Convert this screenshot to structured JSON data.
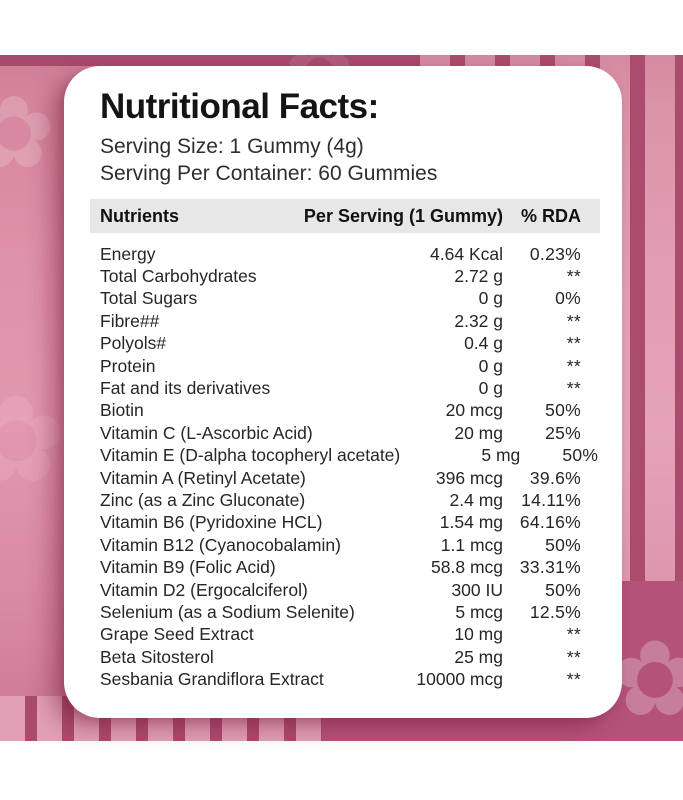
{
  "label": {
    "title": "Nutritional Facts:",
    "serving_size": "Serving Size: 1 Gummy (4g)",
    "serving_per_container": "Serving Per Container: 60 Gummies"
  },
  "table": {
    "headers": {
      "nutrients": "Nutrients",
      "per_serving": "Per Serving (1 Gummy)",
      "rda": "% RDA"
    },
    "rows": [
      {
        "nutrient": "Energy",
        "amount": "4.64 Kcal",
        "rda": "0.23%"
      },
      {
        "nutrient": "Total Carbohydrates",
        "amount": "2.72 g",
        "rda": "**"
      },
      {
        "nutrient": "Total Sugars",
        "amount": "0 g",
        "rda": "0%"
      },
      {
        "nutrient": "Fibre##",
        "amount": "2.32 g",
        "rda": "**"
      },
      {
        "nutrient": "Polyols#",
        "amount": "0.4 g",
        "rda": "**"
      },
      {
        "nutrient": "Protein",
        "amount": "0 g",
        "rda": "**"
      },
      {
        "nutrient": "Fat and its derivatives",
        "amount": "0 g",
        "rda": "**"
      },
      {
        "nutrient": "Biotin",
        "amount": "20 mcg",
        "rda": "50%"
      },
      {
        "nutrient": "Vitamin C (L-Ascorbic Acid)",
        "amount": "20 mg",
        "rda": "25%"
      },
      {
        "nutrient": "Vitamin E (D-alpha tocopheryl acetate)",
        "amount": "5 mg",
        "rda": "50%"
      },
      {
        "nutrient": "Vitamin A (Retinyl Acetate)",
        "amount": "396 mcg",
        "rda": "39.6%"
      },
      {
        "nutrient": "Zinc (as a Zinc Gluconate)",
        "amount": "2.4 mg",
        "rda": "14.11%"
      },
      {
        "nutrient": "Vitamin B6 (Pyridoxine HCL)",
        "amount": "1.54 mg",
        "rda": "64.16%"
      },
      {
        "nutrient": "Vitamin B12 (Cyanocobalamin)",
        "amount": "1.1 mcg",
        "rda": "50%"
      },
      {
        "nutrient": "Vitamin B9 (Folic Acid)",
        "amount": "58.8 mcg",
        "rda": "33.31%"
      },
      {
        "nutrient": "Vitamin D2 (Ergocalciferol)",
        "amount": "300 IU",
        "rda": "50%"
      },
      {
        "nutrient": "Selenium (as a Sodium Selenite)",
        "amount": "5 mcg",
        "rda": "12.5%"
      },
      {
        "nutrient": "Grape Seed Extract",
        "amount": "10 mg",
        "rda": "**"
      },
      {
        "nutrient": "Beta Sitosterol",
        "amount": "25 mg",
        "rda": "**"
      },
      {
        "nutrient": "Sesbania Grandiflora Extract",
        "amount": "10000 mcg",
        "rda": "**"
      }
    ]
  },
  "decor": {
    "flower_glyph": "✿"
  },
  "colors": {
    "pink_base": "#df92ab",
    "pink_dark": "#a84a6c",
    "pink_stripe": "#ab4b6e",
    "pink_solid": "#b4527a",
    "header_bar": "#e7e7e7",
    "card": "#ffffff"
  }
}
